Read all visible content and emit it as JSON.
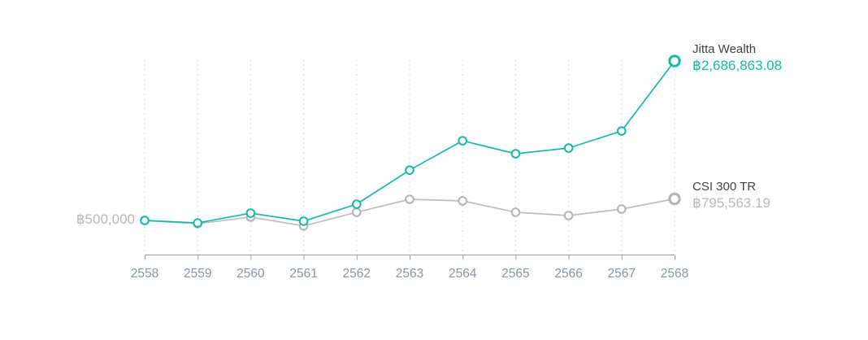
{
  "chart_data": {
    "type": "line",
    "title": "",
    "xlabel": "",
    "ylabel": "",
    "currency_symbol": "฿",
    "categories": [
      "2558",
      "2559",
      "2560",
      "2561",
      "2562",
      "2563",
      "2564",
      "2565",
      "2566",
      "2567",
      "2568"
    ],
    "series": [
      {
        "name": "Jitta Wealth",
        "color": "#17b8a5",
        "end_label": "฿2,686,863.08",
        "end_value": 2686863.08,
        "values": [
          500000,
          466000,
          600000,
          490000,
          723000,
          1190000,
          1593000,
          1415000,
          1493000,
          1727000,
          2686863.08
        ]
      },
      {
        "name": "CSI 300 TR",
        "color": "#bbbec1",
        "end_label": "฿795,563.19",
        "end_value": 795563.19,
        "values": [
          500000,
          455000,
          545000,
          425000,
          612000,
          790000,
          768000,
          612000,
          567000,
          656000,
          795563.19
        ]
      }
    ],
    "baseline_label": "฿500,000",
    "baseline_value": 500000,
    "ylim": [
      30000,
      2710000
    ],
    "grid": "vertical-dashed",
    "legend_position": "right-of-last-points",
    "colors": {
      "grid_line": "#dcdcdc",
      "axis_line": "#9aa0a6",
      "x_tick_label": "#8a93a0",
      "baseline_label": "#b5b8bb",
      "series_name_text": "#3f4245",
      "marker_fill": "#ffffff"
    }
  }
}
